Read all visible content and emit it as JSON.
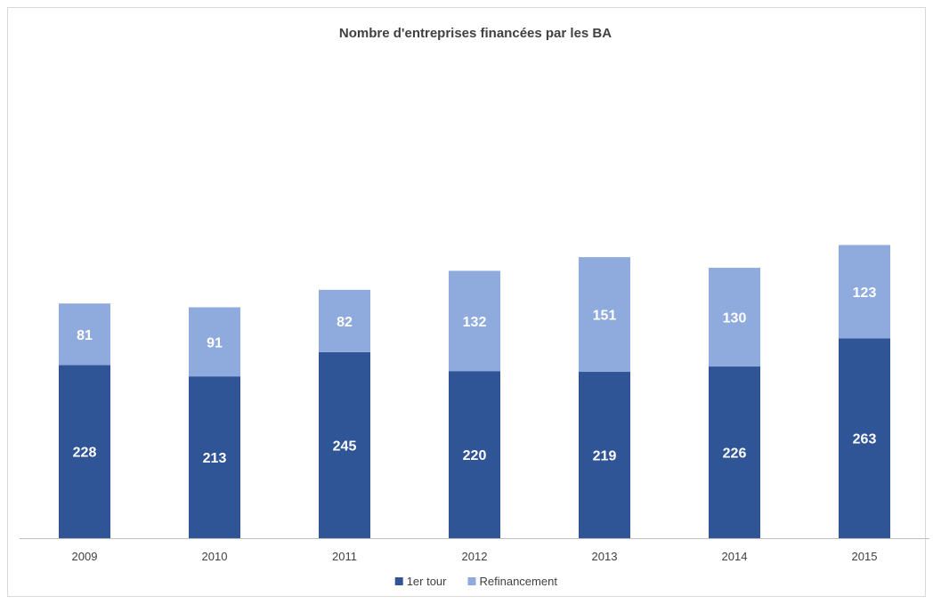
{
  "chart_data": {
    "type": "bar",
    "stacked": true,
    "title": "Nombre d'entreprises financées par les BA",
    "categories": [
      "2009",
      "2010",
      "2011",
      "2012",
      "2013",
      "2014",
      "2015"
    ],
    "series": [
      {
        "name": "1er tour",
        "values": [
          228,
          213,
          245,
          220,
          219,
          226,
          263
        ],
        "color": "#2F5597"
      },
      {
        "name": "Refinancement",
        "values": [
          81,
          91,
          82,
          132,
          151,
          130,
          123
        ],
        "color": "#8FAADC"
      }
    ],
    "ylim": [
      0,
      420
    ],
    "grid": false,
    "legend": "bottom",
    "data_labels": true
  }
}
